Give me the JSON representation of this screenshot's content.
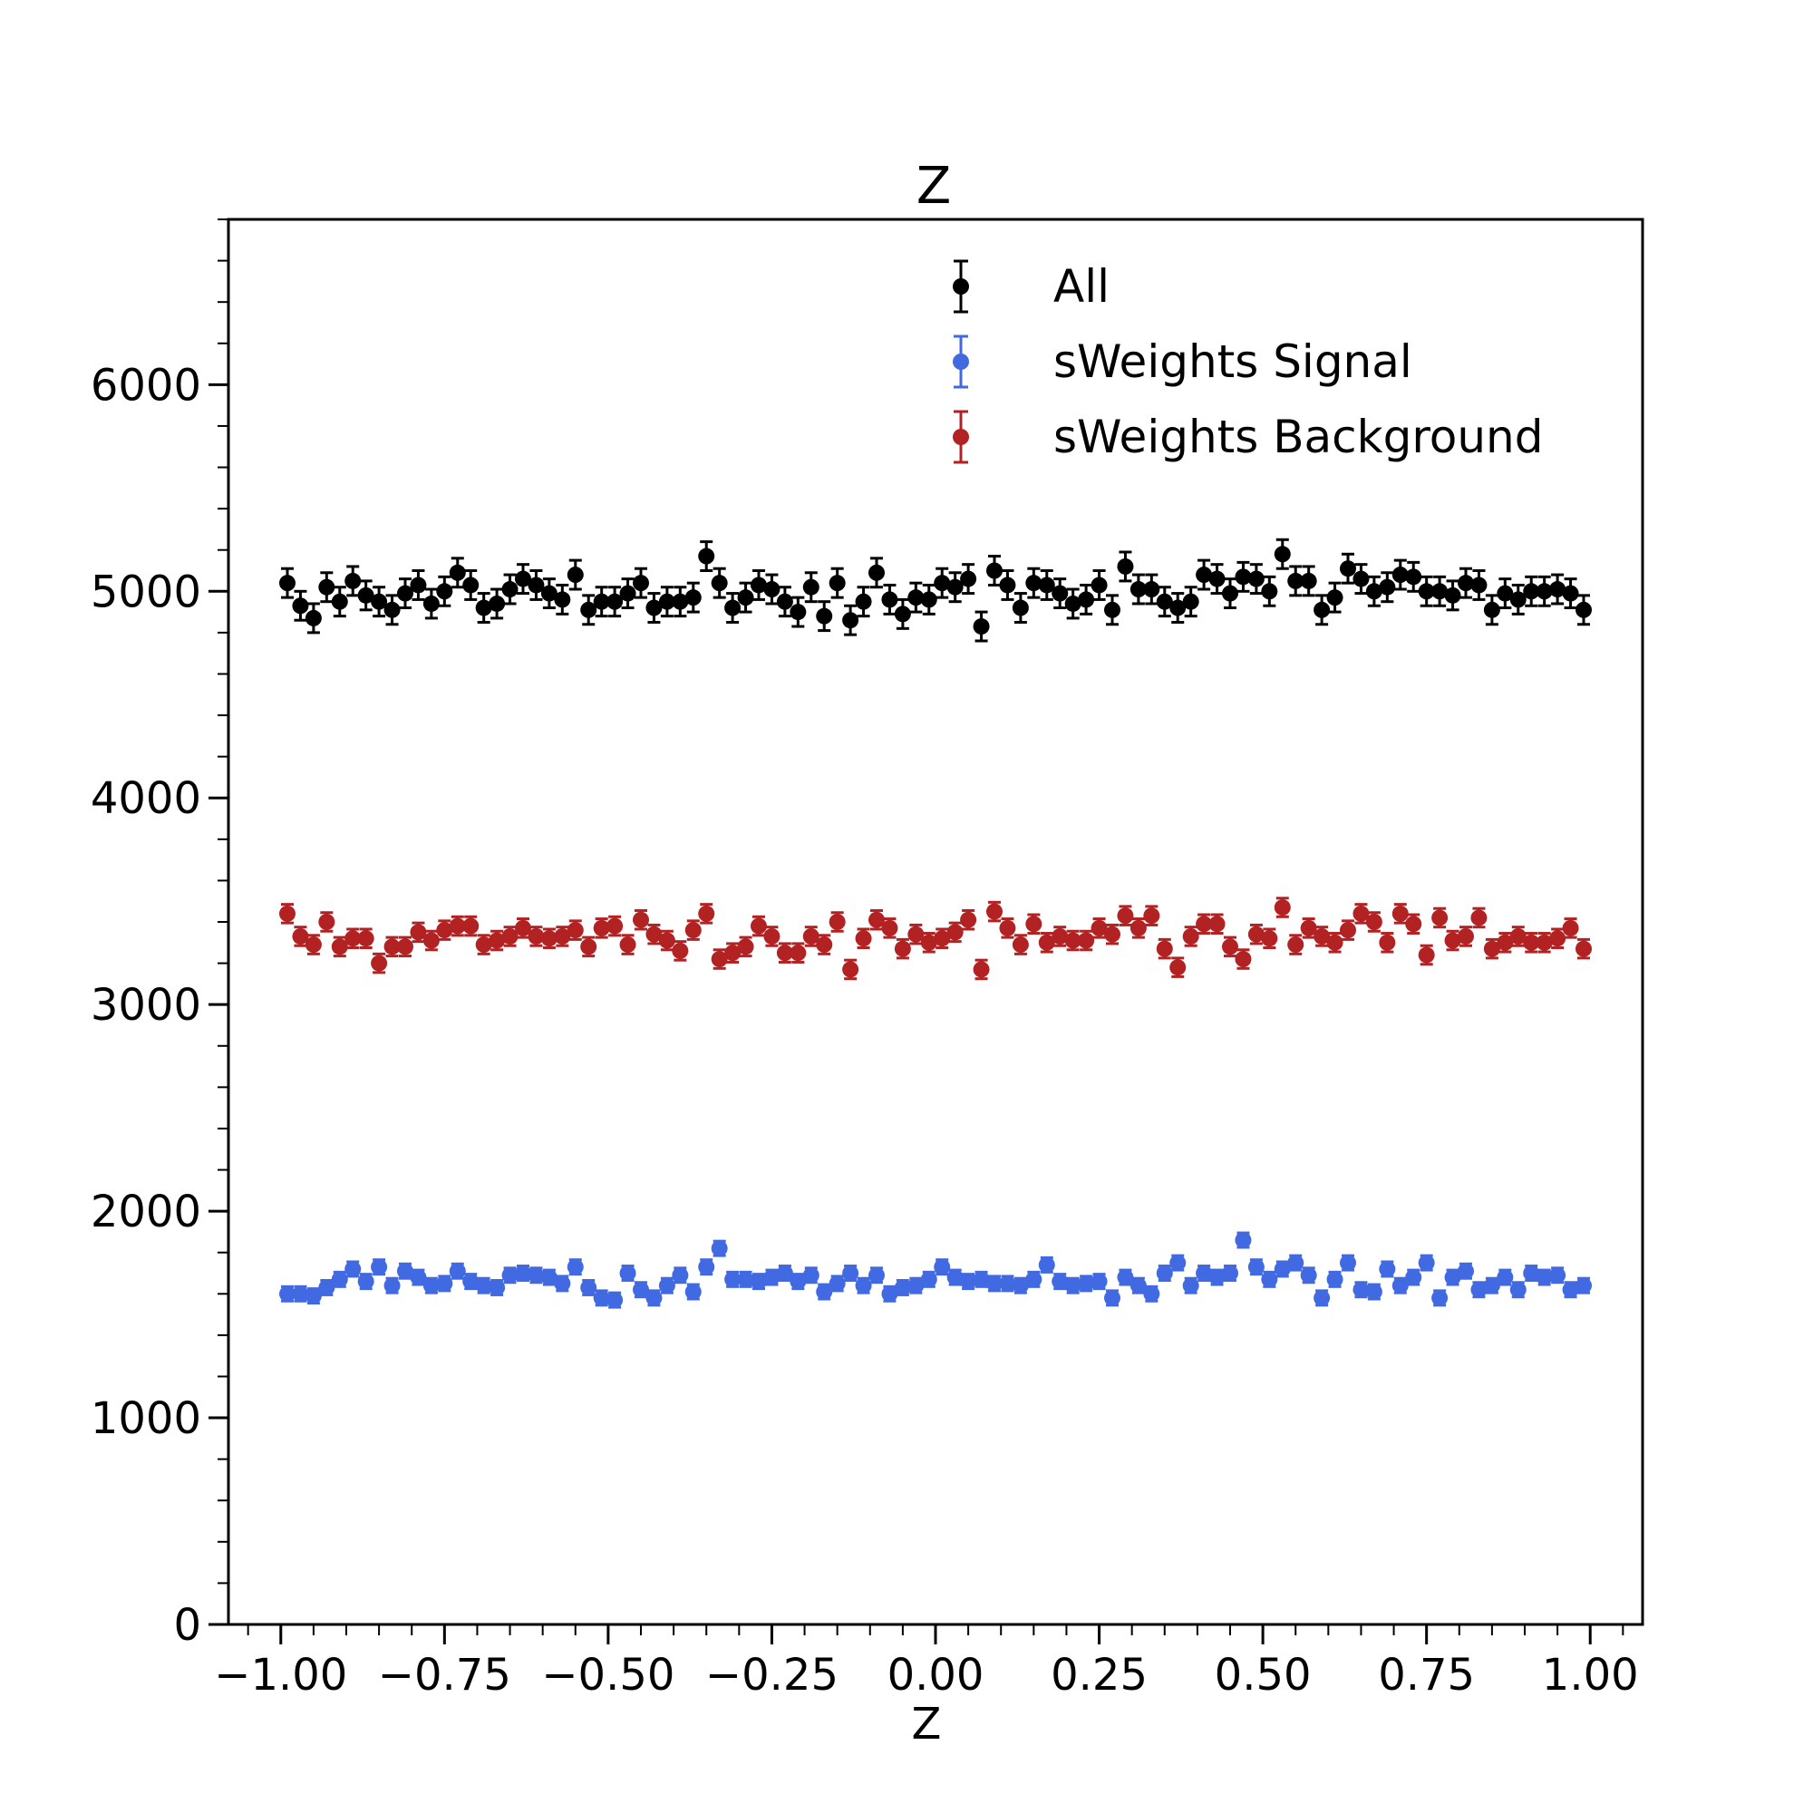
{
  "chart_data": {
    "type": "scatter",
    "title": "Z",
    "xlabel": "Z",
    "ylabel": "",
    "xlim": [
      -1.08,
      1.08
    ],
    "ylim": [
      0,
      6800
    ],
    "xticks": [
      -1.0,
      -0.75,
      -0.5,
      -0.25,
      0.0,
      0.25,
      0.5,
      0.75,
      1.0
    ],
    "xtick_labels": [
      "−1.00",
      "−0.75",
      "−0.50",
      "−0.25",
      "0.00",
      "0.25",
      "0.50",
      "0.75",
      "1.00"
    ],
    "yticks": [
      0,
      1000,
      2000,
      3000,
      4000,
      5000,
      6000
    ],
    "ytick_labels": [
      "0",
      "1000",
      "2000",
      "3000",
      "4000",
      "5000",
      "6000"
    ],
    "legend_position": "top-right",
    "x": [
      -0.99,
      -0.97,
      -0.95,
      -0.93,
      -0.91,
      -0.89,
      -0.87,
      -0.85,
      -0.83,
      -0.81,
      -0.79,
      -0.77,
      -0.75,
      -0.73,
      -0.71,
      -0.69,
      -0.67,
      -0.65,
      -0.63,
      -0.61,
      -0.59,
      -0.57,
      -0.55,
      -0.53,
      -0.51,
      -0.49,
      -0.47,
      -0.45,
      -0.43,
      -0.41,
      -0.39,
      -0.37,
      -0.35,
      -0.33,
      -0.31,
      -0.29,
      -0.27,
      -0.25,
      -0.23,
      -0.21,
      -0.19,
      -0.17,
      -0.15,
      -0.13,
      -0.11,
      -0.09,
      -0.07,
      -0.05,
      -0.03,
      -0.01,
      0.01,
      0.03,
      0.05,
      0.07,
      0.09,
      0.11,
      0.13,
      0.15,
      0.17,
      0.19,
      0.21,
      0.23,
      0.25,
      0.27,
      0.29,
      0.31,
      0.33,
      0.35,
      0.37,
      0.39,
      0.41,
      0.43,
      0.45,
      0.47,
      0.49,
      0.51,
      0.53,
      0.55,
      0.57,
      0.59,
      0.61,
      0.63,
      0.65,
      0.67,
      0.69,
      0.71,
      0.73,
      0.75,
      0.77,
      0.79,
      0.81,
      0.83,
      0.85,
      0.87,
      0.89,
      0.91,
      0.93,
      0.95,
      0.97,
      0.99
    ],
    "series": [
      {
        "name": "All",
        "color": "#000000",
        "values": [
          5040,
          4930,
          4870,
          5020,
          4950,
          5050,
          4980,
          4950,
          4910,
          4990,
          5030,
          4940,
          5000,
          5090,
          5030,
          4920,
          4940,
          5010,
          5060,
          5030,
          4990,
          4960,
          5080,
          4910,
          4950,
          4950,
          4990,
          5040,
          4920,
          4950,
          4950,
          4970,
          5170,
          5040,
          4920,
          4970,
          5030,
          5010,
          4950,
          4900,
          5020,
          4880,
          5040,
          4860,
          4950,
          5090,
          4960,
          4890,
          4970,
          4960,
          5040,
          5020,
          5060,
          4830,
          5100,
          5030,
          4920,
          5040,
          5030,
          4990,
          4940,
          4960,
          5030,
          4910,
          5120,
          5010,
          5010,
          4950,
          4920,
          4950,
          5080,
          5060,
          4990,
          5070,
          5060,
          5000,
          5180,
          5050,
          5050,
          4910,
          4970,
          5110,
          5060,
          5000,
          5020,
          5080,
          5070,
          5000,
          5000,
          4980,
          5040,
          5030,
          4910,
          4990,
          4960,
          5000,
          5000,
          5010,
          4990,
          4910
        ],
        "errors": [
          70,
          70,
          70,
          70,
          70,
          70,
          70,
          70,
          70,
          70,
          70,
          70,
          70,
          70,
          70,
          70,
          70,
          70,
          70,
          70,
          70,
          70,
          70,
          70,
          70,
          70,
          70,
          70,
          70,
          70,
          70,
          70,
          70,
          70,
          70,
          70,
          70,
          70,
          70,
          70,
          70,
          70,
          70,
          70,
          70,
          70,
          70,
          70,
          70,
          70,
          70,
          70,
          70,
          70,
          70,
          70,
          70,
          70,
          70,
          70,
          70,
          70,
          70,
          70,
          70,
          70,
          70,
          70,
          70,
          70,
          70,
          70,
          70,
          70,
          70,
          70,
          70,
          70,
          70,
          70,
          70,
          70,
          70,
          70,
          70,
          70,
          70,
          70,
          70,
          70,
          70,
          70,
          70,
          70,
          70,
          70,
          70,
          70,
          70,
          70
        ]
      },
      {
        "name": "sWeights Signal",
        "color": "#4169e1",
        "values": [
          1600,
          1600,
          1590,
          1630,
          1670,
          1720,
          1660,
          1730,
          1640,
          1710,
          1680,
          1640,
          1650,
          1710,
          1660,
          1640,
          1630,
          1690,
          1700,
          1690,
          1680,
          1650,
          1730,
          1630,
          1580,
          1570,
          1700,
          1620,
          1580,
          1640,
          1690,
          1610,
          1730,
          1820,
          1670,
          1670,
          1660,
          1680,
          1700,
          1660,
          1690,
          1610,
          1650,
          1700,
          1640,
          1690,
          1600,
          1630,
          1640,
          1670,
          1730,
          1680,
          1660,
          1670,
          1650,
          1650,
          1640,
          1670,
          1740,
          1660,
          1640,
          1650,
          1660,
          1580,
          1680,
          1640,
          1600,
          1700,
          1750,
          1640,
          1700,
          1680,
          1700,
          1860,
          1730,
          1670,
          1720,
          1750,
          1690,
          1580,
          1670,
          1750,
          1620,
          1610,
          1720,
          1640,
          1680,
          1750,
          1580,
          1680,
          1710,
          1620,
          1640,
          1680,
          1620,
          1700,
          1680,
          1690,
          1620,
          1640
        ],
        "errors": [
          35,
          35,
          35,
          35,
          35,
          35,
          35,
          35,
          35,
          35,
          35,
          35,
          35,
          35,
          35,
          35,
          35,
          35,
          35,
          35,
          35,
          35,
          35,
          35,
          35,
          35,
          35,
          35,
          35,
          35,
          35,
          35,
          35,
          35,
          35,
          35,
          35,
          35,
          35,
          35,
          35,
          35,
          35,
          35,
          35,
          35,
          35,
          35,
          35,
          35,
          35,
          35,
          35,
          35,
          35,
          35,
          35,
          35,
          35,
          35,
          35,
          35,
          35,
          35,
          35,
          35,
          35,
          35,
          35,
          35,
          35,
          35,
          35,
          35,
          35,
          35,
          35,
          35,
          35,
          35,
          35,
          35,
          35,
          35,
          35,
          35,
          35,
          35,
          35,
          35,
          35,
          35,
          35,
          35,
          35,
          35,
          35,
          35,
          35,
          35
        ]
      },
      {
        "name": "sWeights Background",
        "color": "#b22222",
        "values": [
          3440,
          3330,
          3290,
          3400,
          3280,
          3320,
          3320,
          3200,
          3280,
          3280,
          3350,
          3310,
          3360,
          3380,
          3380,
          3290,
          3310,
          3330,
          3370,
          3330,
          3320,
          3330,
          3360,
          3280,
          3370,
          3380,
          3290,
          3410,
          3340,
          3310,
          3260,
          3360,
          3440,
          3220,
          3250,
          3280,
          3380,
          3330,
          3250,
          3250,
          3330,
          3290,
          3400,
          3170,
          3320,
          3410,
          3370,
          3270,
          3340,
          3300,
          3320,
          3350,
          3410,
          3170,
          3450,
          3370,
          3290,
          3390,
          3300,
          3330,
          3310,
          3310,
          3370,
          3340,
          3430,
          3370,
          3430,
          3270,
          3180,
          3330,
          3390,
          3390,
          3280,
          3220,
          3340,
          3320,
          3470,
          3290,
          3370,
          3330,
          3300,
          3360,
          3440,
          3400,
          3300,
          3440,
          3390,
          3240,
          3420,
          3310,
          3330,
          3420,
          3270,
          3300,
          3330,
          3300,
          3300,
          3320,
          3370,
          3270
        ],
        "errors": [
          45,
          45,
          45,
          45,
          45,
          45,
          45,
          45,
          45,
          45,
          45,
          45,
          45,
          45,
          45,
          45,
          45,
          45,
          45,
          45,
          45,
          45,
          45,
          45,
          45,
          45,
          45,
          45,
          45,
          45,
          45,
          45,
          45,
          45,
          45,
          45,
          45,
          45,
          45,
          45,
          45,
          45,
          45,
          45,
          45,
          45,
          45,
          45,
          45,
          45,
          45,
          45,
          45,
          45,
          45,
          45,
          45,
          45,
          45,
          45,
          45,
          45,
          45,
          45,
          45,
          45,
          45,
          45,
          45,
          45,
          45,
          45,
          45,
          45,
          45,
          45,
          45,
          45,
          45,
          45,
          45,
          45,
          45,
          45,
          45,
          45,
          45,
          45,
          45,
          45,
          45,
          45,
          45,
          45,
          45,
          45,
          45,
          45,
          45,
          45
        ]
      }
    ]
  }
}
